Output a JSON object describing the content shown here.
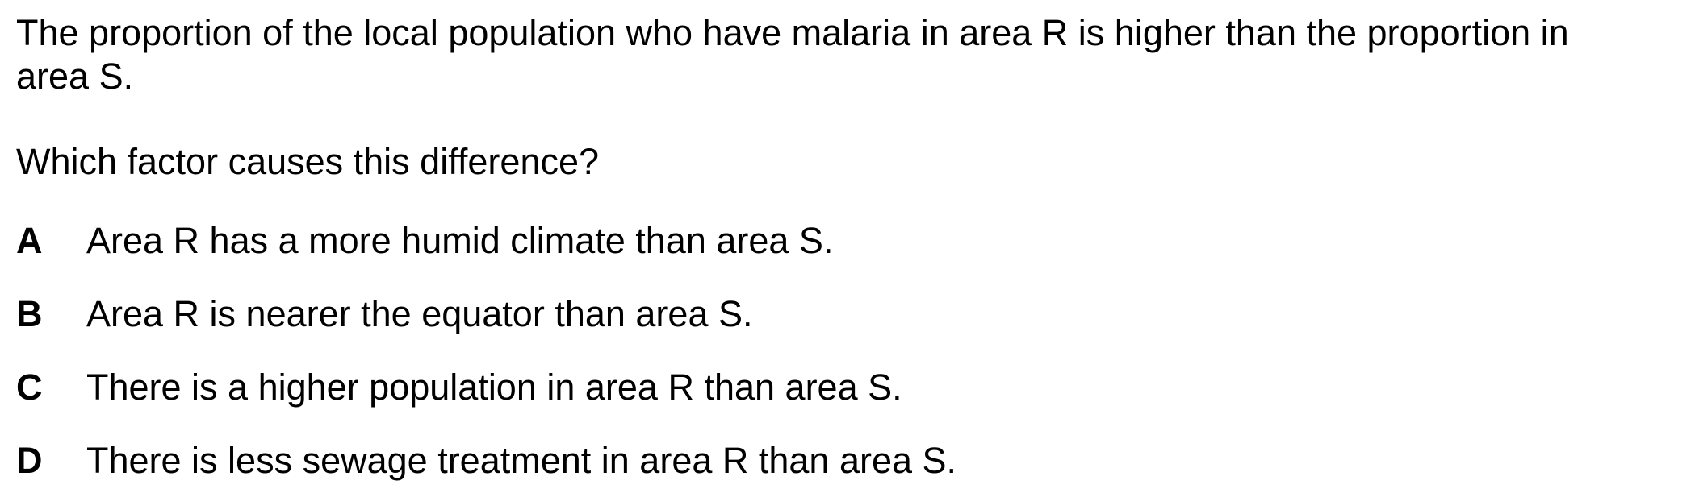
{
  "question": {
    "stem": "The proportion of the local population who have malaria in area R is higher than the proportion in area S.",
    "prompt": "Which factor causes this difference?",
    "options": [
      {
        "letter": "A",
        "text": "Area R has a more humid climate than area S."
      },
      {
        "letter": "B",
        "text": "Area R is nearer the equator than area S."
      },
      {
        "letter": "C",
        "text": "There is a higher population in area R than area S."
      },
      {
        "letter": "D",
        "text": "There is less sewage treatment in area R than area S."
      }
    ]
  }
}
